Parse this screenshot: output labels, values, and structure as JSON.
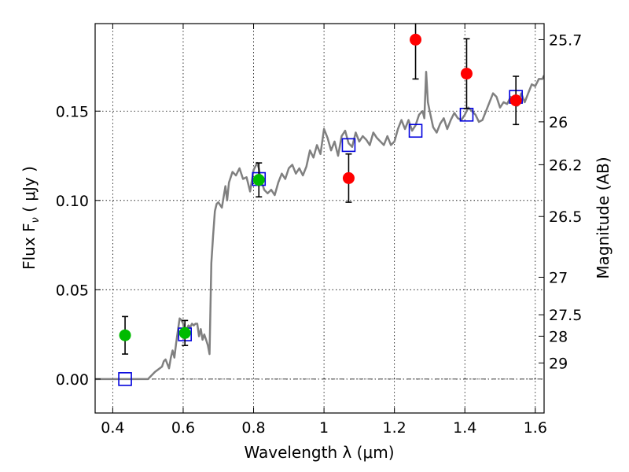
{
  "chart_data": {
    "type": "scatter",
    "xlabel": "Wavelength  λ (μm)",
    "ylabel": "Flux  F",
    "ylabel_sub": "ν",
    "ylabel_unit": "  ( μJy )",
    "y2label": "Magnitude (AB)",
    "xlim": [
      0.35,
      1.625
    ],
    "ylim": [
      -0.019,
      0.199
    ],
    "grid": true,
    "grid_style": "dotted",
    "x_ticks": [
      0.4,
      0.6,
      0.8,
      1.0,
      1.2,
      1.4,
      1.6
    ],
    "x_tick_labels": [
      "0.4",
      "0.6",
      "0.8",
      "1",
      "1.2",
      "1.4",
      "1.6"
    ],
    "y_ticks": [
      0.0,
      0.05,
      0.1,
      0.15
    ],
    "y_tick_labels": [
      "0.00",
      "0.05",
      "0.10",
      "0.15"
    ],
    "y2_ticks": [
      {
        "label": "25.7",
        "flux": 0.19
      },
      {
        "label": "26",
        "flux": 0.144
      },
      {
        "label": "26.2",
        "flux": 0.12
      },
      {
        "label": "26.5",
        "flux": 0.091
      },
      {
        "label": "27",
        "flux": 0.057
      },
      {
        "label": "27.5",
        "flux": 0.036
      },
      {
        "label": "28",
        "flux": 0.024
      },
      {
        "label": "29",
        "flux": 0.009
      }
    ],
    "zero_line": 0.0,
    "colors": {
      "model": "#808080",
      "green": "#00bb00",
      "red": "#ff0000",
      "blue": "#0000dd",
      "errorbar": "#000000"
    },
    "series": [
      {
        "kind": "line",
        "color": "#808080",
        "x": [
          0.35,
          0.5,
          0.52,
          0.54,
          0.545,
          0.55,
          0.56,
          0.565,
          0.57,
          0.575,
          0.58,
          0.585,
          0.59,
          0.595,
          0.6,
          0.605,
          0.61,
          0.615,
          0.62,
          0.625,
          0.63,
          0.635,
          0.64,
          0.645,
          0.65,
          0.655,
          0.66,
          0.665,
          0.67,
          0.675,
          0.68,
          0.685,
          0.69,
          0.695,
          0.7,
          0.71,
          0.72,
          0.725,
          0.73,
          0.74,
          0.75,
          0.76,
          0.77,
          0.78,
          0.79,
          0.8,
          0.81,
          0.815,
          0.82,
          0.83,
          0.84,
          0.85,
          0.86,
          0.87,
          0.88,
          0.89,
          0.9,
          0.91,
          0.92,
          0.93,
          0.94,
          0.95,
          0.96,
          0.97,
          0.98,
          0.99,
          1.0,
          1.01,
          1.02,
          1.03,
          1.04,
          1.05,
          1.06,
          1.07,
          1.08,
          1.09,
          1.1,
          1.11,
          1.12,
          1.13,
          1.14,
          1.15,
          1.16,
          1.17,
          1.18,
          1.19,
          1.2,
          1.21,
          1.22,
          1.23,
          1.24,
          1.25,
          1.26,
          1.27,
          1.28,
          1.285,
          1.29,
          1.295,
          1.3,
          1.31,
          1.32,
          1.33,
          1.34,
          1.35,
          1.36,
          1.37,
          1.38,
          1.39,
          1.4,
          1.41,
          1.42,
          1.43,
          1.44,
          1.45,
          1.46,
          1.47,
          1.48,
          1.49,
          1.5,
          1.51,
          1.52,
          1.53,
          1.54,
          1.55,
          1.56,
          1.57,
          1.58,
          1.59,
          1.6,
          1.61,
          1.62,
          1.625
        ],
        "y": [
          0.0,
          0.0,
          0.004,
          0.007,
          0.01,
          0.011,
          0.006,
          0.012,
          0.016,
          0.012,
          0.02,
          0.027,
          0.034,
          0.033,
          0.031,
          0.025,
          0.028,
          0.03,
          0.029,
          0.031,
          0.03,
          0.031,
          0.031,
          0.024,
          0.028,
          0.022,
          0.025,
          0.022,
          0.019,
          0.014,
          0.065,
          0.08,
          0.094,
          0.098,
          0.099,
          0.096,
          0.108,
          0.1,
          0.11,
          0.116,
          0.114,
          0.118,
          0.112,
          0.113,
          0.105,
          0.117,
          0.121,
          0.118,
          0.112,
          0.106,
          0.104,
          0.106,
          0.103,
          0.11,
          0.115,
          0.112,
          0.118,
          0.12,
          0.115,
          0.118,
          0.114,
          0.119,
          0.128,
          0.124,
          0.131,
          0.126,
          0.14,
          0.135,
          0.128,
          0.133,
          0.125,
          0.136,
          0.139,
          0.132,
          0.13,
          0.138,
          0.133,
          0.136,
          0.134,
          0.131,
          0.138,
          0.135,
          0.133,
          0.131,
          0.136,
          0.131,
          0.133,
          0.14,
          0.145,
          0.14,
          0.145,
          0.139,
          0.142,
          0.148,
          0.15,
          0.146,
          0.172,
          0.155,
          0.15,
          0.141,
          0.138,
          0.143,
          0.146,
          0.14,
          0.145,
          0.149,
          0.146,
          0.145,
          0.148,
          0.152,
          0.15,
          0.148,
          0.144,
          0.145,
          0.15,
          0.155,
          0.16,
          0.158,
          0.152,
          0.155,
          0.154,
          0.158,
          0.155,
          0.153,
          0.16,
          0.155,
          0.16,
          0.165,
          0.164,
          0.168,
          0.168,
          0.17
        ]
      },
      {
        "kind": "squares",
        "color": "#0000dd",
        "x": [
          0.435,
          0.605,
          0.815,
          1.07,
          1.26,
          1.405,
          1.545
        ],
        "y": [
          0.0,
          0.025,
          0.112,
          0.131,
          0.139,
          0.148,
          0.158
        ]
      },
      {
        "kind": "circles",
        "color": "#00bb00",
        "x": [
          0.435,
          0.605,
          0.815
        ],
        "y": [
          0.0245,
          0.0258,
          0.1115
        ],
        "err": [
          [
            0.0105,
            0.0105
          ],
          [
            0.007,
            0.007
          ],
          [
            0.0095,
            0.0095
          ]
        ]
      },
      {
        "kind": "circles",
        "color": "#ff0000",
        "x": [
          1.07,
          1.26,
          1.405,
          1.545
        ],
        "y": [
          0.1125,
          0.19,
          0.171,
          0.156
        ],
        "err": [
          [
            0.0135,
            0.0135
          ],
          [
            0.022,
            0.022
          ],
          [
            0.0195,
            0.0195
          ],
          [
            0.0135,
            0.0135
          ]
        ]
      }
    ]
  }
}
